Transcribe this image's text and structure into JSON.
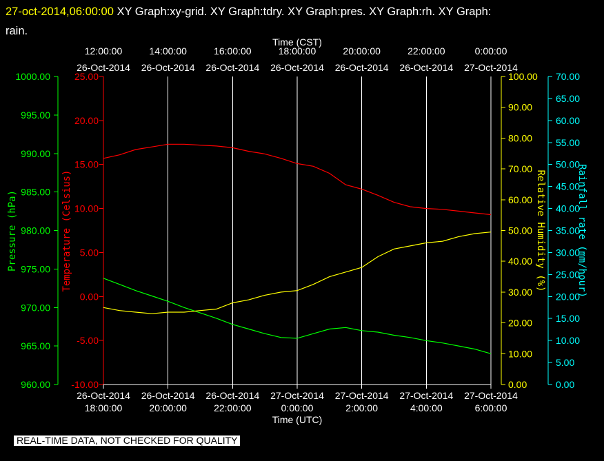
{
  "header": {
    "timestamp": "27-oct-2014,06:00:00",
    "graphs_line1": "XY Graph:xy-grid.  XY Graph:tdry.  XY Graph:pres.  XY Graph:rh.  XY Graph:",
    "graphs_line2": "rain."
  },
  "footer": {
    "notice": "REAL-TIME DATA, NOT CHECKED FOR QUALITY"
  },
  "colors": {
    "temperature": "#ff0000",
    "pressure": "#00ff00",
    "humidity": "#ffff00",
    "rain": "#00ffff",
    "grid": "#ffffff",
    "background": "#000000"
  },
  "chart_data": {
    "type": "line",
    "top_axis": {
      "title": "Time (CST)",
      "ticks": [
        {
          "time": "12:00:00",
          "date": "26-Oct-2014"
        },
        {
          "time": "14:00:00",
          "date": "26-Oct-2014"
        },
        {
          "time": "16:00:00",
          "date": "26-Oct-2014"
        },
        {
          "time": "18:00:00",
          "date": "26-Oct-2014"
        },
        {
          "time": "20:00:00",
          "date": "26-Oct-2014"
        },
        {
          "time": "22:00:00",
          "date": "26-Oct-2014"
        },
        {
          "time": "0:00:00",
          "date": "27-Oct-2014"
        }
      ]
    },
    "bottom_axis": {
      "title": "Time (UTC)",
      "ticks": [
        {
          "date": "26-Oct-2014",
          "time": "18:00:00"
        },
        {
          "date": "26-Oct-2014",
          "time": "20:00:00"
        },
        {
          "date": "26-Oct-2014",
          "time": "22:00:00"
        },
        {
          "date": "27-Oct-2014",
          "time": "0:00:00"
        },
        {
          "date": "27-Oct-2014",
          "time": "2:00:00"
        },
        {
          "date": "27-Oct-2014",
          "time": "4:00:00"
        },
        {
          "date": "27-Oct-2014",
          "time": "6:00:00"
        }
      ]
    },
    "x_utc": [
      "26-Oct-2014 18:00:00",
      "27-Oct-2014 06:00:00"
    ],
    "axes": {
      "pressure": {
        "label": "Pressure (hPa)",
        "range": [
          960,
          1000
        ],
        "ticks": [
          "960.00",
          "965.00",
          "970.00",
          "975.00",
          "980.00",
          "985.00",
          "990.00",
          "995.00",
          "1000.00"
        ]
      },
      "temperature": {
        "label": "Temperature (Celsius)",
        "range": [
          -10,
          25
        ],
        "ticks": [
          "-10.00",
          "-5.00",
          "0.00",
          "5.00",
          "10.00",
          "15.00",
          "20.00",
          "25.00"
        ]
      },
      "humidity": {
        "label": "Relative Humidity (%)",
        "range": [
          0,
          100
        ],
        "ticks": [
          "0.00",
          "10.00",
          "20.00",
          "30.00",
          "40.00",
          "50.00",
          "60.00",
          "70.00",
          "80.00",
          "90.00",
          "100.00"
        ]
      },
      "rain": {
        "label": "Rainfall rate (mm/hour)",
        "range": [
          0,
          70
        ],
        "ticks": [
          "0.00",
          "5.00",
          "10.00",
          "15.00",
          "20.00",
          "25.00",
          "30.00",
          "35.00",
          "40.00",
          "45.00",
          "50.00",
          "55.00",
          "60.00",
          "65.00",
          "70.00"
        ]
      }
    },
    "grid": true,
    "series": [
      {
        "name": "tdry",
        "axis": "temperature",
        "color": "#ff0000",
        "hours": [
          18.0,
          18.5,
          19.0,
          19.5,
          20.0,
          20.5,
          21.0,
          21.5,
          22.0,
          22.5,
          23.0,
          23.5,
          24.0,
          24.5,
          25.0,
          25.5,
          26.0,
          26.5,
          27.0,
          27.5,
          28.0,
          28.5,
          29.0,
          29.5,
          30.0
        ],
        "values": [
          15.7,
          16.1,
          16.7,
          17.0,
          17.3,
          17.3,
          17.2,
          17.1,
          16.9,
          16.5,
          16.2,
          15.7,
          15.1,
          14.8,
          14.0,
          12.7,
          12.2,
          11.5,
          10.7,
          10.2,
          10.0,
          9.9,
          9.7,
          9.5,
          9.3
        ]
      },
      {
        "name": "pres",
        "axis": "pressure",
        "color": "#00ff00",
        "hours": [
          18.0,
          18.5,
          19.0,
          19.5,
          20.0,
          20.5,
          21.0,
          21.5,
          22.0,
          22.5,
          23.0,
          23.5,
          24.0,
          24.5,
          25.0,
          25.5,
          26.0,
          26.5,
          27.0,
          27.5,
          28.0,
          28.5,
          29.0,
          29.5,
          30.0
        ],
        "values": [
          973.8,
          973.0,
          972.2,
          971.5,
          970.8,
          970.0,
          969.3,
          968.6,
          967.8,
          967.2,
          966.6,
          966.1,
          966.0,
          966.6,
          967.2,
          967.4,
          967.0,
          966.8,
          966.4,
          966.1,
          965.7,
          965.4,
          965.0,
          964.6,
          964.0
        ]
      },
      {
        "name": "rh",
        "axis": "humidity",
        "color": "#ffff00",
        "hours": [
          18.0,
          18.5,
          19.0,
          19.5,
          20.0,
          20.5,
          21.0,
          21.5,
          22.0,
          22.5,
          23.0,
          23.5,
          24.0,
          24.5,
          25.0,
          25.5,
          26.0,
          26.5,
          27.0,
          27.5,
          28.0,
          28.5,
          29.0,
          29.5,
          30.0
        ],
        "values": [
          25.0,
          24.0,
          23.5,
          23.0,
          23.5,
          23.5,
          24.0,
          24.5,
          26.5,
          27.5,
          29.0,
          30.0,
          30.5,
          32.5,
          35.0,
          36.5,
          38.0,
          41.5,
          44.0,
          45.0,
          46.0,
          46.5,
          48.0,
          49.0,
          49.5
        ]
      },
      {
        "name": "rain",
        "axis": "rain",
        "color": "#00ffff",
        "hours": [
          18.0,
          30.0
        ],
        "values": [
          0,
          0
        ]
      }
    ]
  }
}
